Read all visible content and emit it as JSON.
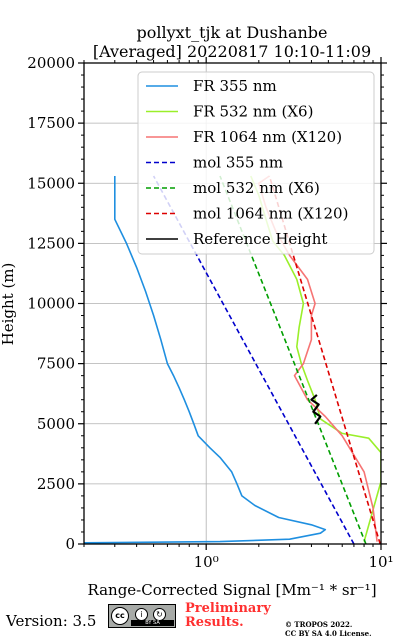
{
  "chart_data": {
    "type": "line",
    "title": [
      "pollyxt_tjk at Dushanbe",
      "[Averaged] 20220817 10:10-11:09"
    ],
    "xlabel": "Range-Corrected Signal [Mm⁻¹ * sr⁻¹]",
    "ylabel": "Height (m)",
    "x_scale": "log",
    "xlim": [
      0.2,
      10
    ],
    "ylim": [
      0,
      20000
    ],
    "x_ticks": [
      {
        "value": 1,
        "label": "10⁰"
      },
      {
        "value": 10,
        "label": "10¹"
      }
    ],
    "y_ticks": [
      "0",
      "2500",
      "5000",
      "7500",
      "10000",
      "12500",
      "15000",
      "17500",
      "20000"
    ],
    "y_tick_values": [
      0,
      2500,
      5000,
      7500,
      10000,
      12500,
      15000,
      17500,
      20000
    ],
    "grid": true,
    "legend_position": "upper-right",
    "legend": [
      "FR 355 nm",
      "FR 532 nm (X6)",
      "FR 1064 nm (X120)",
      "mol 355 nm",
      "mol 532 nm (X6)",
      "mol 1064 nm (X120)",
      "Reference Height"
    ],
    "series": [
      {
        "name": "FR 355 nm",
        "color": "#1f8fe0",
        "style": "solid",
        "points": [
          [
            0.2,
            50
          ],
          [
            1.2,
            100
          ],
          [
            3.0,
            200
          ],
          [
            4.5,
            450
          ],
          [
            4.8,
            600
          ],
          [
            4.0,
            800
          ],
          [
            2.6,
            1100
          ],
          [
            1.9,
            1600
          ],
          [
            1.6,
            2000
          ],
          [
            1.5,
            2500
          ],
          [
            1.4,
            3000
          ],
          [
            1.2,
            3600
          ],
          [
            1.05,
            4000
          ],
          [
            0.9,
            4500
          ],
          [
            0.85,
            5000
          ],
          [
            0.8,
            5500
          ],
          [
            0.75,
            6000
          ],
          [
            0.7,
            6500
          ],
          [
            0.65,
            7000
          ],
          [
            0.6,
            7500
          ],
          [
            0.55,
            8500
          ],
          [
            0.5,
            9500
          ],
          [
            0.45,
            10500
          ],
          [
            0.4,
            11500
          ],
          [
            0.35,
            12500
          ],
          [
            0.3,
            13500
          ],
          [
            0.3,
            14500
          ],
          [
            0.3,
            15300
          ]
        ]
      },
      {
        "name": "FR 532 nm (X6)",
        "color": "#9aef2a",
        "style": "solid",
        "points": [
          [
            8.0,
            100
          ],
          [
            10,
            2600
          ],
          [
            10,
            3800
          ],
          [
            8.5,
            4400
          ],
          [
            6.0,
            4600
          ],
          [
            4.5,
            5200
          ],
          [
            4.2,
            6000
          ],
          [
            3.8,
            6800
          ],
          [
            3.5,
            7500
          ],
          [
            3.3,
            8200
          ],
          [
            3.4,
            9000
          ],
          [
            3.6,
            10000
          ],
          [
            3.3,
            11000
          ],
          [
            2.8,
            12000
          ],
          [
            2.4,
            12600
          ],
          [
            2.2,
            13500
          ],
          [
            2.0,
            14500
          ],
          [
            1.8,
            15300
          ]
        ]
      },
      {
        "name": "FR 1064 nm (X120)",
        "color": "#f67474",
        "style": "solid",
        "points": [
          [
            9.5,
            100
          ],
          [
            9.0,
            1500
          ],
          [
            8.0,
            3000
          ],
          [
            6.0,
            4500
          ],
          [
            4.8,
            5300
          ],
          [
            3.8,
            6000
          ],
          [
            3.2,
            7000
          ],
          [
            3.6,
            7500
          ],
          [
            4.0,
            8500
          ],
          [
            4.0,
            9500
          ],
          [
            4.2,
            10000
          ],
          [
            3.8,
            11000
          ],
          [
            3.0,
            12000
          ],
          [
            2.5,
            13000
          ],
          [
            2.2,
            14000
          ],
          [
            2.0,
            15000
          ],
          [
            2.3,
            15300
          ]
        ]
      },
      {
        "name": "mol 355 nm",
        "color": "#0000cc",
        "style": "dashed",
        "points": [
          [
            7.0,
            0
          ],
          [
            0.5,
            15300
          ]
        ]
      },
      {
        "name": "mol 532 nm (X6)",
        "color": "#009e00",
        "style": "dashed",
        "points": [
          [
            8.2,
            0
          ],
          [
            1.2,
            15300
          ]
        ]
      },
      {
        "name": "mol 1064 nm (X120)",
        "color": "#dd0000",
        "style": "dashed",
        "points": [
          [
            9.9,
            0
          ],
          [
            2.3,
            15300
          ]
        ]
      },
      {
        "name": "Reference Height",
        "color": "#000000",
        "style": "solid",
        "points": [
          [
            4.2,
            5000
          ],
          [
            4.5,
            5300
          ],
          [
            4.1,
            5500
          ],
          [
            4.4,
            5800
          ],
          [
            4.0,
            6000
          ],
          [
            4.3,
            6200
          ]
        ]
      }
    ]
  },
  "footer": {
    "version": "Version: 3.5",
    "license_badge": {
      "cc": "cc",
      "icon_by": "i",
      "icon_sa": "↻",
      "bar": "BY   SA"
    },
    "preliminary": [
      "Preliminary",
      "Results."
    ],
    "credit": [
      "© TROPOS 2022.",
      "CC BY SA 4.0 License."
    ]
  }
}
